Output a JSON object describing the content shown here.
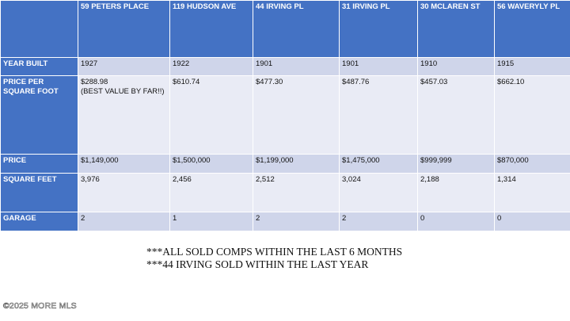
{
  "table": {
    "columns": [
      "",
      "59 PETERS PLACE",
      "119 HUDSON AVE",
      "44 IRVING PL",
      "31 IRVING PL",
      "30 MCLAREN ST",
      "56 WAVERYLY PL"
    ],
    "rows": [
      {
        "label": "YEAR BUILT",
        "values": [
          "1927",
          "1922",
          "1901",
          "1901",
          "1910",
          "1915"
        ]
      },
      {
        "label": "PRICE PER SQUARE FOOT",
        "values": [
          "$288.98\n(BEST VALUE BY FAR!!)",
          "$610.74",
          "$477.30",
          "$487.76",
          "$457.03",
          "$662.10"
        ]
      },
      {
        "label": "PRICE",
        "values": [
          "$1,149,000",
          "$1,500,000",
          "$1,199,000",
          "$1,475,000",
          "$999,999",
          "$870,000"
        ]
      },
      {
        "label": "SQUARE FEET",
        "values": [
          "3,976",
          "2,456",
          "2,512",
          "3,024",
          "2,188",
          "1,314"
        ]
      },
      {
        "label": "GARAGE",
        "values": [
          "2",
          "1",
          "2",
          "2",
          "0",
          "0"
        ]
      }
    ]
  },
  "notes": [
    "***ALL SOLD COMPS WITHIN THE LAST 6 MONTHS",
    "***44 IRVING SOLD WITHIN THE LAST YEAR"
  ],
  "watermark": "©2025 MORE MLS",
  "colors": {
    "header": "#4472c4",
    "row_odd": "#cfd5ea",
    "row_even": "#e9ebf5"
  }
}
